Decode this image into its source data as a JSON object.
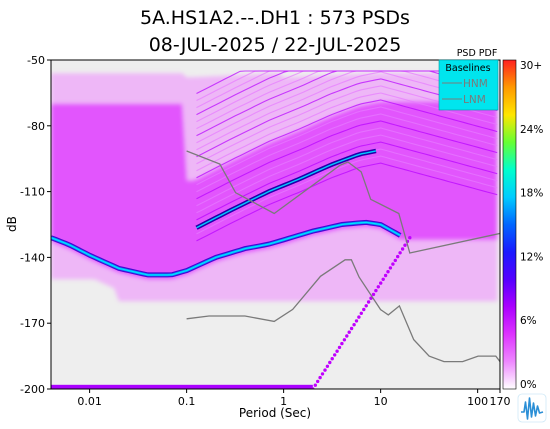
{
  "chart_data": {
    "type": "heatmap",
    "title": "5A.HS1A2.--.DH1 : 573 PSDs",
    "subtitle": "08-JUL-2025 / 22-JUL-2025",
    "xlabel": "Period (Sec)",
    "ylabel": "dB",
    "x_scale": "log",
    "xlim": [
      0.004,
      170
    ],
    "ylim": [
      -200,
      -50
    ],
    "x_ticks": [
      {
        "value": 0.01,
        "label": "0.01"
      },
      {
        "value": 0.1,
        "label": "0.1"
      },
      {
        "value": 1,
        "label": "1"
      },
      {
        "value": 10,
        "label": "10"
      },
      {
        "value": 100,
        "label": "100"
      },
      {
        "value": 170,
        "label": "170"
      }
    ],
    "y_ticks": [
      {
        "value": -50,
        "label": "-50"
      },
      {
        "value": -80,
        "label": "-80"
      },
      {
        "value": -110,
        "label": "-110"
      },
      {
        "value": -140,
        "label": "-140"
      },
      {
        "value": -170,
        "label": "-170"
      },
      {
        "value": -200,
        "label": "-200"
      }
    ],
    "colorbar": {
      "title": "PSD PDF",
      "ticks": [
        "30+",
        "24%",
        "18%",
        "12%",
        "6%",
        "0%"
      ],
      "colors": [
        "#ff2020",
        "#ff9900",
        "#ffe600",
        "#66ff33",
        "#00ffcc",
        "#00ccff",
        "#0066ff",
        "#1a1aff",
        "#5500ff",
        "#aa00ff",
        "#dd33ff",
        "#ee88ff",
        "#ffffff"
      ]
    },
    "legend": {
      "title": "Baselines",
      "placement": "top-right",
      "entries": [
        "HNM",
        "LNM"
      ],
      "background": "#00e5ee"
    },
    "mode_curve": {
      "name": "",
      "x": [
        0.004,
        0.006,
        0.01,
        0.02,
        0.04,
        0.07,
        0.1,
        0.2,
        0.4,
        0.7,
        1,
        2,
        4,
        7,
        10,
        16
      ],
      "y": [
        -131,
        -134,
        -139,
        -145,
        -148,
        -148,
        -146,
        -140,
        -136,
        -134,
        -132,
        -128,
        -125,
        -124,
        -125,
        -130
      ]
    },
    "upper_line": {
      "x": [
        0.12,
        0.3,
        0.7,
        1.5,
        3,
        6,
        10
      ],
      "y": [
        -127,
        -118,
        -110,
        -104,
        -98,
        -93,
        -91
      ]
    },
    "hnm": {
      "x": [
        0.1,
        0.22,
        0.32,
        0.8,
        3.8,
        4.6,
        6.3,
        7.9,
        15.4,
        20,
        354.8
      ],
      "y": [
        -91.5,
        -97.4,
        -110.5,
        -120.0,
        -98.0,
        -96.5,
        -101.0,
        -113.5,
        -120.0,
        -138.0,
        -126.0
      ]
    },
    "lnm": {
      "x": [
        0.1,
        0.17,
        0.4,
        0.8,
        1.24,
        2.4,
        4.3,
        5,
        6,
        10,
        12,
        15.6,
        21.9,
        31.6,
        45,
        70,
        101,
        154,
        328
      ],
      "y": [
        -168.0,
        -166.7,
        -166.7,
        -169.2,
        -163.7,
        -148.6,
        -141.1,
        -141.1,
        -149.0,
        -163.8,
        -166.2,
        -162.1,
        -177.5,
        -185.0,
        -187.5,
        -187.5,
        -185.0,
        -185.0,
        -187.5
      ]
    },
    "dotted_line": {
      "x": [
        2,
        20
      ],
      "y": [
        -200,
        -131
      ]
    },
    "colors": {
      "background_fill": "#eeeeee",
      "pdf_main": "#dd33ff",
      "mode_core": "#00e5ff",
      "noise_models": "#7a7a7a"
    }
  }
}
